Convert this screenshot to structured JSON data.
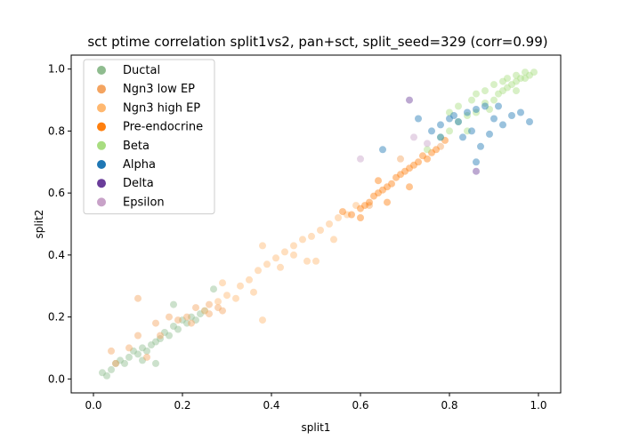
{
  "chart_data": {
    "type": "scatter",
    "title": "sct ptime correlation split1vs2, pan+sct, split_seed=329 (corr=0.99)",
    "xlabel": "split1",
    "ylabel": "split2",
    "xlim": [
      -0.05,
      1.05
    ],
    "ylim": [
      -0.045,
      1.045
    ],
    "xticks": [
      0.0,
      0.2,
      0.4,
      0.6,
      0.8,
      1.0
    ],
    "yticks": [
      0.0,
      0.2,
      0.4,
      0.6,
      0.8,
      1.0
    ],
    "xtick_labels": [
      "0.0",
      "0.2",
      "0.4",
      "0.6",
      "0.8",
      "1.0"
    ],
    "ytick_labels": [
      "0.0",
      "0.2",
      "0.4",
      "0.6",
      "0.8",
      "1.0"
    ],
    "legend_position": "upper-left",
    "grid": false,
    "series": [
      {
        "name": "Ductal",
        "color": "#8fbc8f",
        "points": [
          [
            0.02,
            0.02
          ],
          [
            0.04,
            0.03
          ],
          [
            0.05,
            0.05
          ],
          [
            0.07,
            0.05
          ],
          [
            0.08,
            0.07
          ],
          [
            0.1,
            0.08
          ],
          [
            0.11,
            0.1
          ],
          [
            0.12,
            0.09
          ],
          [
            0.14,
            0.12
          ],
          [
            0.15,
            0.13
          ],
          [
            0.16,
            0.15
          ],
          [
            0.17,
            0.14
          ],
          [
            0.18,
            0.17
          ],
          [
            0.19,
            0.16
          ],
          [
            0.2,
            0.19
          ],
          [
            0.21,
            0.18
          ],
          [
            0.22,
            0.2
          ],
          [
            0.23,
            0.19
          ],
          [
            0.24,
            0.21
          ],
          [
            0.06,
            0.06
          ],
          [
            0.09,
            0.09
          ],
          [
            0.13,
            0.11
          ],
          [
            0.03,
            0.01
          ],
          [
            0.18,
            0.24
          ],
          [
            0.27,
            0.29
          ],
          [
            0.14,
            0.05
          ],
          [
            0.25,
            0.22
          ],
          [
            0.11,
            0.06
          ]
        ]
      },
      {
        "name": "Ngn3 low EP",
        "color": "#f4a460",
        "points": [
          [
            0.05,
            0.05
          ],
          [
            0.08,
            0.1
          ],
          [
            0.1,
            0.14
          ],
          [
            0.14,
            0.18
          ],
          [
            0.17,
            0.2
          ],
          [
            0.19,
            0.19
          ],
          [
            0.21,
            0.2
          ],
          [
            0.23,
            0.23
          ],
          [
            0.26,
            0.24
          ],
          [
            0.29,
            0.22
          ],
          [
            0.04,
            0.09
          ],
          [
            0.12,
            0.07
          ],
          [
            0.22,
            0.18
          ],
          [
            0.28,
            0.23
          ],
          [
            0.26,
            0.21
          ],
          [
            0.1,
            0.26
          ],
          [
            0.15,
            0.14
          ],
          [
            0.62,
            0.56
          ],
          [
            0.78,
            0.75
          ],
          [
            0.69,
            0.71
          ]
        ]
      },
      {
        "name": "Ngn3 high EP",
        "color": "#ffb870",
        "points": [
          [
            0.25,
            0.22
          ],
          [
            0.28,
            0.25
          ],
          [
            0.3,
            0.27
          ],
          [
            0.33,
            0.3
          ],
          [
            0.35,
            0.32
          ],
          [
            0.37,
            0.35
          ],
          [
            0.39,
            0.37
          ],
          [
            0.41,
            0.39
          ],
          [
            0.43,
            0.41
          ],
          [
            0.45,
            0.43
          ],
          [
            0.47,
            0.45
          ],
          [
            0.49,
            0.46
          ],
          [
            0.51,
            0.48
          ],
          [
            0.53,
            0.5
          ],
          [
            0.55,
            0.52
          ],
          [
            0.57,
            0.53
          ],
          [
            0.59,
            0.56
          ],
          [
            0.42,
            0.36
          ],
          [
            0.48,
            0.38
          ],
          [
            0.45,
            0.4
          ],
          [
            0.38,
            0.43
          ],
          [
            0.32,
            0.26
          ],
          [
            0.38,
            0.19
          ],
          [
            0.5,
            0.38
          ],
          [
            0.54,
            0.45
          ],
          [
            0.36,
            0.28
          ],
          [
            0.29,
            0.31
          ]
        ]
      },
      {
        "name": "Pre-endocrine",
        "color": "#ff7f0e",
        "points": [
          [
            0.58,
            0.53
          ],
          [
            0.6,
            0.55
          ],
          [
            0.61,
            0.56
          ],
          [
            0.62,
            0.57
          ],
          [
            0.63,
            0.59
          ],
          [
            0.64,
            0.6
          ],
          [
            0.65,
            0.61
          ],
          [
            0.66,
            0.62
          ],
          [
            0.67,
            0.63
          ],
          [
            0.68,
            0.65
          ],
          [
            0.69,
            0.66
          ],
          [
            0.7,
            0.67
          ],
          [
            0.71,
            0.68
          ],
          [
            0.72,
            0.69
          ],
          [
            0.73,
            0.7
          ],
          [
            0.74,
            0.72
          ],
          [
            0.75,
            0.71
          ],
          [
            0.76,
            0.73
          ],
          [
            0.77,
            0.74
          ],
          [
            0.6,
            0.52
          ],
          [
            0.66,
            0.57
          ],
          [
            0.64,
            0.64
          ],
          [
            0.71,
            0.62
          ],
          [
            0.56,
            0.54
          ],
          [
            0.79,
            0.77
          ]
        ]
      },
      {
        "name": "Beta",
        "color": "#a8dd80",
        "points": [
          [
            0.78,
            0.78
          ],
          [
            0.8,
            0.8
          ],
          [
            0.82,
            0.83
          ],
          [
            0.84,
            0.85
          ],
          [
            0.86,
            0.86
          ],
          [
            0.88,
            0.89
          ],
          [
            0.9,
            0.9
          ],
          [
            0.91,
            0.92
          ],
          [
            0.92,
            0.93
          ],
          [
            0.93,
            0.94
          ],
          [
            0.94,
            0.95
          ],
          [
            0.95,
            0.96
          ],
          [
            0.96,
            0.97
          ],
          [
            0.97,
            0.97
          ],
          [
            0.98,
            0.98
          ],
          [
            0.99,
            0.99
          ],
          [
            0.97,
            0.99
          ],
          [
            0.95,
            0.98
          ],
          [
            0.93,
            0.97
          ],
          [
            0.9,
            0.95
          ],
          [
            0.88,
            0.93
          ],
          [
            0.85,
            0.9
          ],
          [
            0.82,
            0.88
          ],
          [
            0.8,
            0.86
          ],
          [
            0.86,
            0.92
          ],
          [
            0.92,
            0.96
          ],
          [
            0.84,
            0.8
          ],
          [
            0.89,
            0.87
          ],
          [
            0.95,
            0.93
          ],
          [
            0.75,
            0.74
          ]
        ]
      },
      {
        "name": "Alpha",
        "color": "#1f77b4",
        "points": [
          [
            0.76,
            0.8
          ],
          [
            0.78,
            0.82
          ],
          [
            0.8,
            0.84
          ],
          [
            0.82,
            0.83
          ],
          [
            0.84,
            0.86
          ],
          [
            0.86,
            0.87
          ],
          [
            0.88,
            0.88
          ],
          [
            0.9,
            0.84
          ],
          [
            0.92,
            0.82
          ],
          [
            0.94,
            0.85
          ],
          [
            0.96,
            0.86
          ],
          [
            0.98,
            0.83
          ],
          [
            0.85,
            0.8
          ],
          [
            0.87,
            0.75
          ],
          [
            0.89,
            0.79
          ],
          [
            0.83,
            0.78
          ],
          [
            0.81,
            0.85
          ],
          [
            0.86,
            0.7
          ],
          [
            0.65,
            0.74
          ],
          [
            0.78,
            0.78
          ],
          [
            0.91,
            0.88
          ],
          [
            0.73,
            0.84
          ]
        ]
      },
      {
        "name": "Delta",
        "color": "#6a3d9a",
        "points": [
          [
            0.71,
            0.9
          ],
          [
            0.86,
            0.67
          ]
        ]
      },
      {
        "name": "Epsilon",
        "color": "#c8a2c8",
        "points": [
          [
            0.72,
            0.78
          ],
          [
            0.6,
            0.71
          ],
          [
            0.75,
            0.76
          ]
        ]
      }
    ]
  }
}
